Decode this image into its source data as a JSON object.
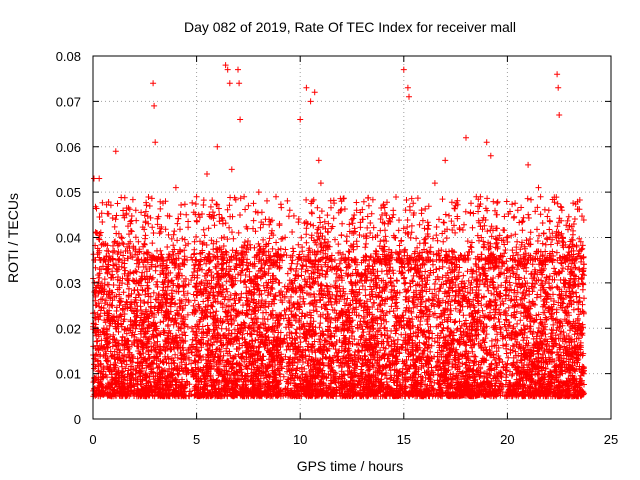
{
  "chart_data": {
    "type": "scatter",
    "title": "Day 082 of 2019, Rate Of TEC Index for receiver mall",
    "xlabel": "GPS time / hours",
    "ylabel": "ROTI / TECUs",
    "xlim": [
      0,
      25
    ],
    "ylim": [
      0,
      0.08
    ],
    "xticks": [
      0,
      5,
      10,
      15,
      20,
      25
    ],
    "xtick_labels": [
      "0",
      "5",
      "10",
      "15",
      "20",
      "25"
    ],
    "yticks": [
      0,
      0.01,
      0.02,
      0.03,
      0.04,
      0.05,
      0.06,
      0.07,
      0.08
    ],
    "ytick_labels": [
      "0",
      "0.01",
      "0.02",
      "0.03",
      "0.04",
      "0.05",
      "0.06",
      "0.07",
      "0.08"
    ],
    "grid": true,
    "marker": "+",
    "color": "#ff0000",
    "series": [
      {
        "name": "ROTI",
        "x": [
          0.05,
          0.2,
          0.3,
          0.5,
          1.1,
          1.6,
          2.9,
          2.95,
          3.0,
          3.5,
          4.0,
          4.5,
          5.0,
          5.5,
          6.0,
          6.4,
          6.5,
          6.6,
          6.7,
          7.0,
          7.05,
          7.1,
          7.5,
          8.0,
          8.5,
          9.0,
          9.5,
          10.0,
          10.3,
          10.5,
          10.7,
          10.9,
          11.0,
          11.5,
          12.0,
          12.5,
          13.0,
          13.5,
          14.0,
          14.5,
          15.0,
          15.2,
          15.25,
          15.3,
          16.0,
          16.5,
          16.7,
          17.0,
          17.5,
          18.0,
          18.5,
          19.0,
          19.2,
          19.5,
          20.0,
          20.5,
          21.0,
          21.5,
          21.6,
          22.0,
          22.4,
          22.45,
          22.5,
          23.0,
          23.5
        ],
        "y": [
          0.053,
          0.041,
          0.053,
          0.035,
          0.059,
          0.045,
          0.074,
          0.069,
          0.061,
          0.048,
          0.051,
          0.045,
          0.049,
          0.054,
          0.06,
          0.078,
          0.077,
          0.074,
          0.055,
          0.077,
          0.074,
          0.066,
          0.047,
          0.05,
          0.044,
          0.043,
          0.046,
          0.066,
          0.073,
          0.07,
          0.072,
          0.057,
          0.052,
          0.042,
          0.048,
          0.041,
          0.044,
          0.04,
          0.047,
          0.045,
          0.077,
          0.073,
          0.071,
          0.046,
          0.042,
          0.052,
          0.044,
          0.057,
          0.047,
          0.062,
          0.049,
          0.061,
          0.058,
          0.045,
          0.039,
          0.046,
          0.056,
          0.051,
          0.049,
          0.046,
          0.076,
          0.073,
          0.067,
          0.038,
          0.036
        ],
        "typical_range": [
          0.005,
          0.035
        ],
        "approx_point_count": 9000
      }
    ]
  }
}
